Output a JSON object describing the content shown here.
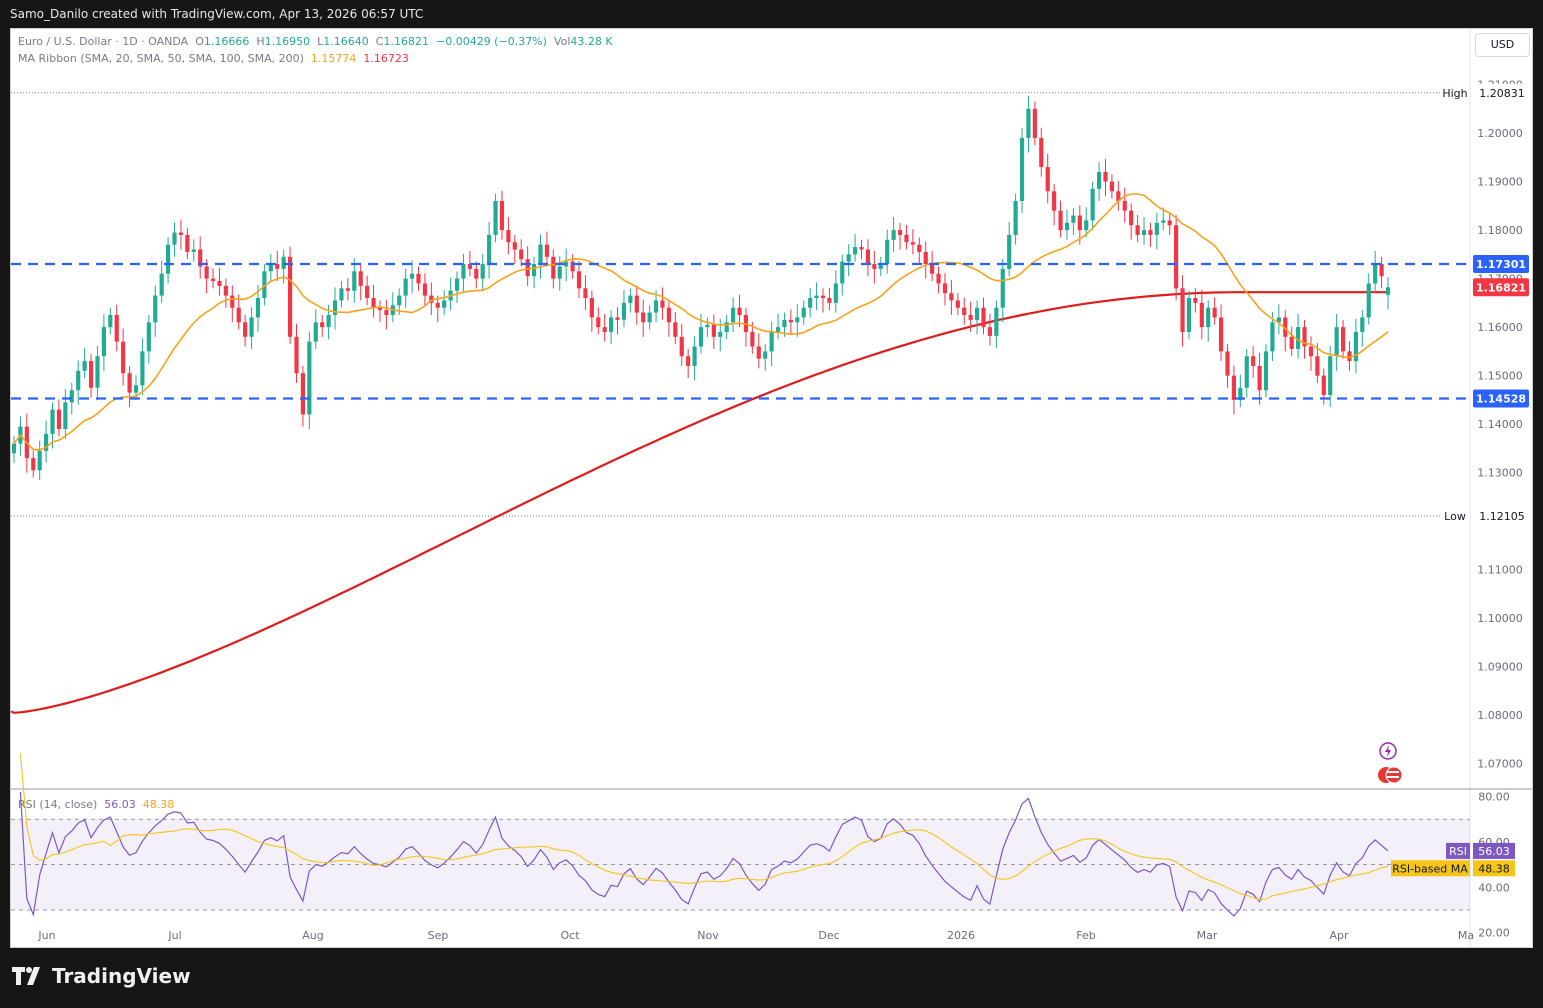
{
  "header": {
    "credit": "Samo_Danilo created with TradingView.com, Apr 13, 2026 06:57 UTC"
  },
  "legend": {
    "symbol": "Euro / U.S. Dollar · 1D · OANDA",
    "o_label": "O",
    "o": "1.16666",
    "h_label": "H",
    "h": "1.16950",
    "l_label": "L",
    "l": "1.16640",
    "c_label": "C",
    "c": "1.16821",
    "change": "−0.00429 (−0.37%)",
    "vol_label": "Vol",
    "vol": "43.28 K",
    "ma_name": "MA Ribbon (SMA, 20, SMA, 50, SMA, 100, SMA, 200)",
    "ma_val1": "1.15774",
    "ma_val2": "1.16723",
    "rsi_name": "RSI (14, close)",
    "rsi_val": "56.03",
    "rsi_ma_val": "48.38"
  },
  "currency_button": "USD",
  "footer": {
    "brand": "TradingView"
  },
  "colors": {
    "up": "#22ab94",
    "down": "#f23645",
    "sma20": "#f7a21b",
    "sma200": "#e01b1b",
    "hline": "#2962ff",
    "rsi": "#7e57c2",
    "rsi_ma": "#f5c518"
  },
  "chart_data": {
    "type": "candlestick",
    "symbol": "EURUSD",
    "ylim": [
      1.065,
      1.213
    ],
    "y_ticks": [
      "1.07000",
      "1.08000",
      "1.09000",
      "1.10000",
      "1.11000",
      "1.12000",
      "1.13000",
      "1.14000",
      "1.15000",
      "1.16000",
      "1.17000",
      "1.18000",
      "1.19000",
      "1.20000",
      "1.21000"
    ],
    "x_ticks": [
      "Jun",
      "Jul",
      "Aug",
      "Sep",
      "Oct",
      "Nov",
      "Dec",
      "2026",
      "Feb",
      "Mar",
      "Apr",
      "Ma"
    ],
    "high_label": "High",
    "high": 1.20831,
    "low_label": "Low",
    "low": 1.12105,
    "horizontal_lines": [
      {
        "value": 1.17301,
        "label": "1.17301"
      },
      {
        "value": 1.14528,
        "label": "1.14528"
      }
    ],
    "last_price": {
      "value": 1.16821,
      "label": "1.16821"
    },
    "closes": [
      1.136,
      1.1395,
      1.133,
      1.1305,
      1.1345,
      1.138,
      1.143,
      1.139,
      1.1445,
      1.147,
      1.151,
      1.153,
      1.1475,
      1.154,
      1.16,
      1.1625,
      1.157,
      1.1505,
      1.1465,
      1.148,
      1.155,
      1.161,
      1.1665,
      1.171,
      1.177,
      1.1795,
      1.179,
      1.1755,
      1.176,
      1.1725,
      1.17,
      1.1695,
      1.1685,
      1.1665,
      1.164,
      1.161,
      1.158,
      1.162,
      1.166,
      1.1715,
      1.173,
      1.172,
      1.1745,
      1.158,
      1.1505,
      1.142,
      1.157,
      1.161,
      1.16,
      1.1625,
      1.1655,
      1.168,
      1.1675,
      1.1715,
      1.1685,
      1.166,
      1.164,
      1.1635,
      1.1625,
      1.1645,
      1.1665,
      1.17,
      1.171,
      1.169,
      1.1665,
      1.165,
      1.164,
      1.1655,
      1.1675,
      1.17,
      1.173,
      1.172,
      1.17,
      1.173,
      1.179,
      1.186,
      1.18,
      1.1775,
      1.176,
      1.174,
      1.1705,
      1.173,
      1.177,
      1.1745,
      1.17,
      1.1725,
      1.1735,
      1.1715,
      1.168,
      1.166,
      1.162,
      1.16,
      1.159,
      1.162,
      1.1615,
      1.165,
      1.1665,
      1.163,
      1.161,
      1.163,
      1.1655,
      1.164,
      1.161,
      1.158,
      1.154,
      1.152,
      1.156,
      1.16,
      1.1605,
      1.158,
      1.159,
      1.161,
      1.164,
      1.1625,
      1.159,
      1.156,
      1.1535,
      1.155,
      1.159,
      1.16,
      1.1615,
      1.161,
      1.162,
      1.164,
      1.166,
      1.1665,
      1.166,
      1.165,
      1.169,
      1.1735,
      1.175,
      1.1765,
      1.176,
      1.173,
      1.172,
      1.173,
      1.178,
      1.18,
      1.179,
      1.1775,
      1.177,
      1.1755,
      1.173,
      1.171,
      1.169,
      1.167,
      1.1655,
      1.164,
      1.1625,
      1.1615,
      1.164,
      1.16,
      1.1582,
      1.164,
      1.172,
      1.179,
      1.186,
      1.199,
      1.205,
      1.199,
      1.193,
      1.188,
      1.184,
      1.18,
      1.1815,
      1.183,
      1.18,
      1.182,
      1.1885,
      1.192,
      1.19,
      1.188,
      1.186,
      1.184,
      1.181,
      1.179,
      1.18,
      1.179,
      1.1815,
      1.182,
      1.181,
      1.168,
      1.159,
      1.166,
      1.165,
      1.16,
      1.164,
      1.162,
      1.155,
      1.15,
      1.145,
      1.1475,
      1.154,
      1.152,
      1.147,
      1.155,
      1.161,
      1.162,
      1.158,
      1.1555,
      1.16,
      1.156,
      1.154,
      1.15,
      1.146,
      1.154,
      1.16,
      1.155,
      1.153,
      1.159,
      1.162,
      1.169,
      1.173,
      1.1705,
      1.1682
    ],
    "ohlc_last": {
      "open": 1.16666,
      "high": 1.1695,
      "low": 1.1664,
      "close": 1.16821
    },
    "series": [
      {
        "name": "SMA 20",
        "last": 1.15774
      },
      {
        "name": "SMA 200",
        "last": 1.16723
      }
    ],
    "rsi": {
      "ylim": [
        15,
        82
      ],
      "y_ticks": [
        "20.00",
        "40.00",
        "60.00",
        "80.00"
      ],
      "bands": [
        30,
        70
      ],
      "mid": 50,
      "last_rsi": 56.03,
      "last_ma": 48.38,
      "rsi_label": "RSI",
      "ma_label": "RSI-based MA"
    }
  }
}
